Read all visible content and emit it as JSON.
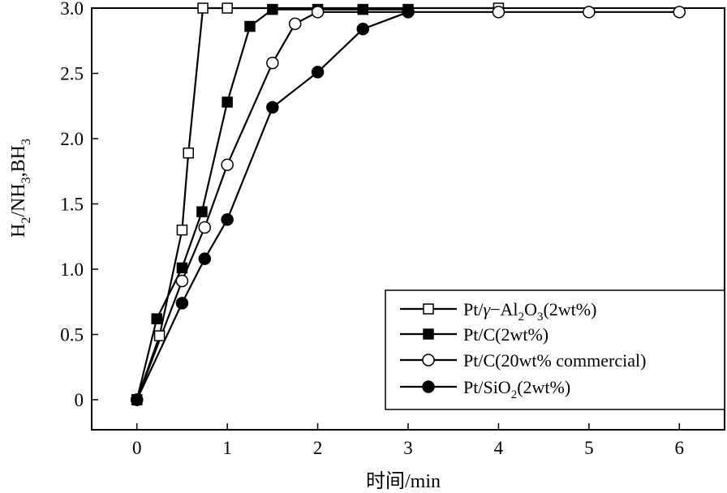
{
  "chart_data": {
    "type": "line",
    "title": "",
    "xlabel": "时间/min",
    "ylabel_parts": {
      "h": "H",
      "h_sub": "2",
      "sep": "/NH",
      "nh_sub": "3",
      "b": ",BH",
      "b_sub": "3"
    },
    "xlim": [
      -0.5,
      6.5
    ],
    "ylim": [
      -0.23,
      3.0
    ],
    "x_ticks": [
      0,
      1,
      2,
      3,
      4,
      5,
      6
    ],
    "y_ticks": [
      0,
      0.5,
      1.0,
      1.5,
      2.0,
      2.5,
      3.0
    ],
    "y_tick_labels": [
      "0",
      "0.5",
      "1.0",
      "1.5",
      "2.0",
      "2.5",
      "3.0"
    ],
    "grid": false,
    "legend_position": "lower-right",
    "series": [
      {
        "legend": {
          "prefix": "Pt/",
          "greek": "γ",
          "mid": "−Al",
          "sub1": "2",
          "o": "O",
          "sub2": "3",
          "suffix": "(2wt%)"
        },
        "marker": "open-square",
        "x": [
          0,
          0.25,
          0.5,
          0.57,
          0.73,
          1.0,
          4.0
        ],
        "y": [
          0,
          0.49,
          1.3,
          1.89,
          3.0,
          3.0,
          3.0
        ]
      },
      {
        "legend": {
          "text": "Pt/C(2wt%)"
        },
        "marker": "filled-square",
        "x": [
          0,
          0.22,
          0.5,
          0.72,
          1.0,
          1.25,
          1.5,
          2.0,
          2.5,
          3.0
        ],
        "y": [
          0,
          0.62,
          1.01,
          1.44,
          2.28,
          2.86,
          2.99,
          2.99,
          2.99,
          2.99
        ]
      },
      {
        "legend": {
          "text": "Pt/C(20wt% commercial)"
        },
        "marker": "open-circle",
        "x": [
          0,
          0.5,
          0.75,
          1.0,
          1.5,
          1.75,
          2.0,
          3.0,
          4.0,
          5.0,
          6.0
        ],
        "y": [
          0,
          0.91,
          1.32,
          1.8,
          2.58,
          2.88,
          2.97,
          2.97,
          2.97,
          2.97,
          2.97
        ]
      },
      {
        "legend": {
          "prefix": "Pt/SiO",
          "sub1": "2",
          "suffix": "(2wt%)"
        },
        "marker": "filled-circle",
        "x": [
          0,
          0.5,
          0.75,
          1.0,
          1.5,
          2.0,
          2.5,
          3.0
        ],
        "y": [
          0,
          0.74,
          1.08,
          1.38,
          2.24,
          2.51,
          2.84,
          2.97
        ]
      }
    ]
  }
}
